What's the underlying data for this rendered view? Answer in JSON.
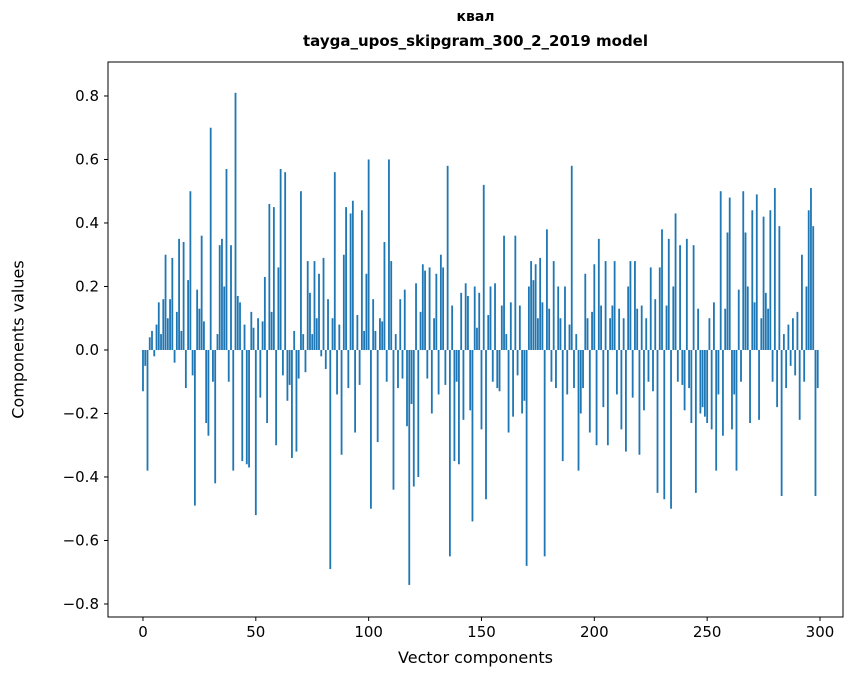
{
  "chart_data": {
    "type": "bar",
    "title": "квал",
    "subtitle": "tayga_upos_skipgram_300_2_2019 model",
    "xlabel": "Vector components",
    "ylabel": "Components values",
    "bar_color": "#1f77b4",
    "grid": false,
    "legend": null,
    "xlim": [
      -15.5,
      310.2
    ],
    "ylim": [
      -0.841,
      0.907
    ],
    "xticks": [
      0,
      50,
      100,
      150,
      200,
      250,
      300
    ],
    "yticks": [
      -0.8,
      -0.6,
      -0.4,
      -0.2,
      0.0,
      0.2,
      0.4,
      0.6,
      0.8
    ],
    "n_components": 300,
    "values": [
      -0.13,
      -0.05,
      -0.38,
      0.04,
      0.06,
      -0.02,
      0.08,
      0.15,
      0.05,
      0.16,
      0.3,
      0.1,
      0.16,
      0.29,
      -0.04,
      0.12,
      0.35,
      0.06,
      0.34,
      -0.12,
      0.22,
      0.5,
      -0.08,
      -0.49,
      0.19,
      0.13,
      0.36,
      0.09,
      -0.23,
      -0.27,
      0.7,
      -0.1,
      -0.42,
      0.05,
      0.33,
      0.35,
      0.2,
      0.57,
      -0.1,
      0.33,
      -0.38,
      0.81,
      0.17,
      0.15,
      -0.35,
      0.08,
      -0.36,
      -0.37,
      0.12,
      0.07,
      -0.52,
      0.1,
      -0.15,
      0.09,
      0.23,
      -0.23,
      0.46,
      0.12,
      0.45,
      -0.3,
      0.26,
      0.57,
      -0.08,
      0.56,
      -0.16,
      -0.11,
      -0.34,
      0.06,
      -0.32,
      -0.09,
      0.5,
      0.05,
      -0.07,
      0.28,
      0.18,
      0.05,
      0.28,
      0.1,
      0.24,
      -0.02,
      0.29,
      -0.06,
      0.16,
      -0.69,
      0.1,
      0.56,
      -0.14,
      0.08,
      -0.33,
      0.3,
      0.45,
      -0.12,
      0.43,
      0.47,
      -0.26,
      0.11,
      -0.11,
      0.44,
      0.06,
      0.24,
      0.6,
      -0.5,
      0.16,
      0.06,
      -0.29,
      0.1,
      0.09,
      0.34,
      -0.1,
      0.6,
      0.28,
      -0.44,
      0.05,
      -0.12,
      0.16,
      -0.09,
      0.19,
      -0.24,
      -0.74,
      -0.17,
      -0.43,
      0.21,
      -0.4,
      0.12,
      0.27,
      0.25,
      -0.09,
      0.26,
      -0.2,
      0.1,
      0.24,
      -0.14,
      0.3,
      0.26,
      -0.11,
      0.58,
      -0.65,
      0.14,
      -0.35,
      -0.1,
      -0.36,
      0.18,
      -0.22,
      0.21,
      0.17,
      -0.19,
      -0.54,
      0.2,
      0.07,
      0.18,
      -0.25,
      0.52,
      -0.47,
      0.11,
      0.2,
      -0.1,
      0.21,
      -0.12,
      -0.13,
      0.14,
      0.36,
      0.05,
      -0.26,
      0.15,
      -0.21,
      0.36,
      -0.08,
      0.14,
      -0.2,
      -0.16,
      -0.68,
      0.2,
      0.28,
      0.22,
      0.27,
      0.1,
      0.29,
      0.15,
      -0.65,
      0.38,
      0.13,
      -0.1,
      0.28,
      -0.12,
      0.2,
      0.1,
      -0.35,
      0.2,
      -0.14,
      0.08,
      0.58,
      -0.12,
      0.05,
      -0.38,
      -0.2,
      -0.12,
      0.24,
      0.1,
      -0.26,
      0.12,
      0.27,
      -0.3,
      0.35,
      0.14,
      -0.18,
      0.28,
      -0.3,
      0.1,
      0.14,
      0.28,
      -0.14,
      0.13,
      -0.25,
      0.1,
      -0.32,
      0.2,
      0.28,
      -0.15,
      0.28,
      0.13,
      -0.33,
      0.14,
      -0.19,
      0.1,
      -0.1,
      0.26,
      -0.13,
      0.16,
      -0.45,
      0.26,
      0.38,
      -0.47,
      0.14,
      0.35,
      -0.5,
      0.2,
      0.43,
      -0.1,
      0.33,
      -0.11,
      -0.19,
      0.35,
      -0.12,
      -0.23,
      0.33,
      -0.45,
      0.13,
      -0.2,
      -0.18,
      -0.21,
      -0.23,
      0.1,
      -0.25,
      0.15,
      -0.38,
      -0.14,
      0.5,
      -0.27,
      0.13,
      0.37,
      0.48,
      -0.25,
      -0.14,
      -0.38,
      0.19,
      -0.1,
      0.5,
      0.37,
      0.2,
      -0.23,
      0.44,
      0.15,
      0.49,
      -0.22,
      0.1,
      0.42,
      0.18,
      0.13,
      0.44,
      -0.1,
      0.51,
      -0.18,
      0.39,
      -0.46,
      0.05,
      -0.12,
      0.08,
      -0.05,
      0.1,
      -0.08,
      0.12,
      -0.22,
      0.3,
      -0.1,
      0.2,
      0.44,
      0.51,
      0.39,
      -0.46,
      -0.12
    ]
  }
}
